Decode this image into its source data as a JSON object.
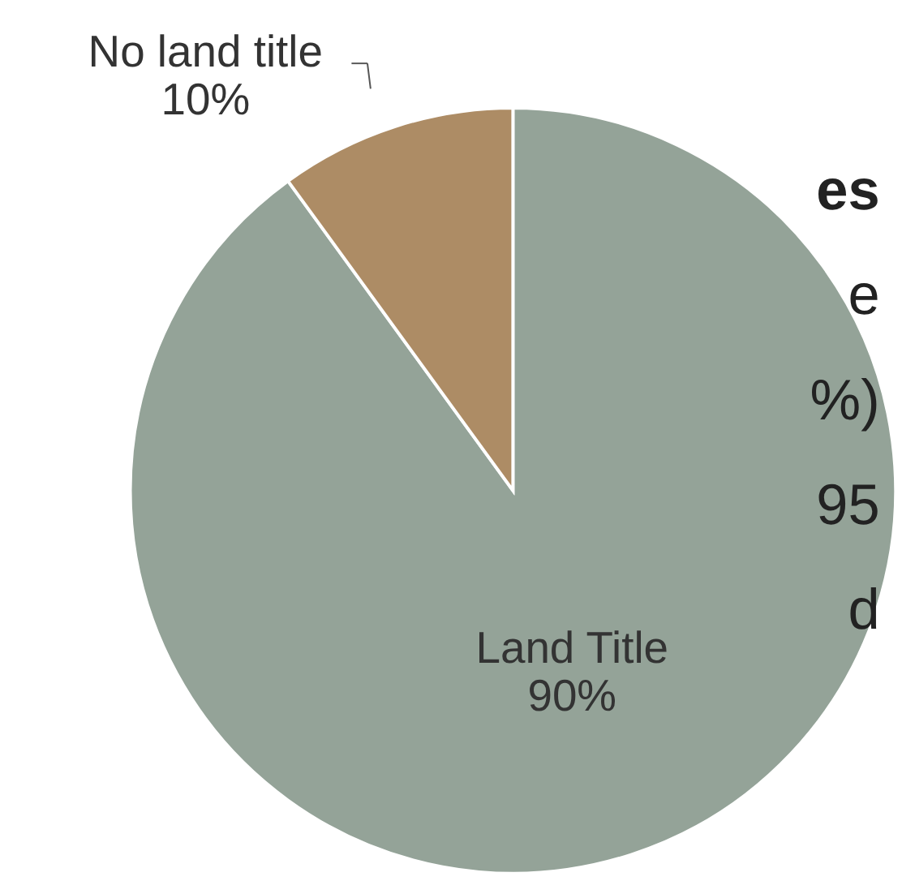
{
  "chart_data": {
    "type": "pie",
    "categories": [
      "Land Title",
      "No land title"
    ],
    "values": [
      90,
      10
    ],
    "value_labels": [
      "90%",
      "10%"
    ],
    "colors": [
      "#94a398",
      "#ad8c65"
    ],
    "annotations": [
      "es",
      "e",
      "%)",
      "95",
      "d"
    ]
  }
}
